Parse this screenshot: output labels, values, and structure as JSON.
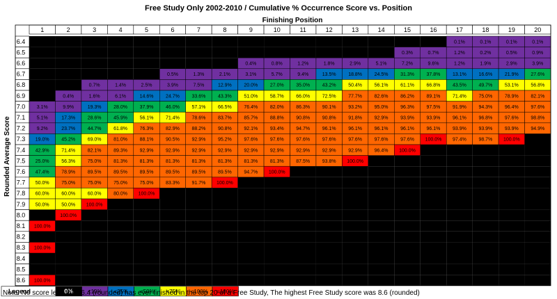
{
  "chart_data": {
    "type": "heatmap",
    "title": "Free Study Only 2002-2010 / Cumulative % Occurrence Score vs. Position",
    "xlabel": "Finishing Position",
    "ylabel": "Rounded Average Score",
    "columns": [
      1,
      2,
      3,
      4,
      5,
      6,
      7,
      8,
      9,
      10,
      11,
      12,
      13,
      14,
      15,
      16,
      17,
      18,
      19,
      20
    ],
    "rows": [
      {
        "score": "6.4",
        "values": [
          null,
          null,
          null,
          null,
          null,
          null,
          null,
          null,
          null,
          null,
          null,
          null,
          null,
          null,
          null,
          null,
          "0.1%",
          "0.1%",
          "0.1%",
          "0.1%"
        ]
      },
      {
        "score": "6.5",
        "values": [
          null,
          null,
          null,
          null,
          null,
          null,
          null,
          null,
          null,
          null,
          null,
          null,
          null,
          null,
          "0.3%",
          "0.7%",
          "1.2%",
          "0.2%",
          "0.5%",
          "0.9%"
        ]
      },
      {
        "score": "6.6",
        "values": [
          null,
          null,
          null,
          null,
          null,
          null,
          null,
          null,
          "0.4%",
          "0.8%",
          "1.2%",
          "1.8%",
          "2.9%",
          "5.1%",
          "7.2%",
          "9.6%",
          "1.2%",
          "1.9%",
          "2.9%",
          "3.9%"
        ]
      },
      {
        "score": "6.7",
        "values": [
          null,
          null,
          null,
          null,
          null,
          "0.5%",
          "1.3%",
          "2.1%",
          "3.1%",
          "5.7%",
          "9.4%",
          "13.5%",
          "18.8%",
          "24.5%",
          "31.3%",
          "37.8%",
          "13.1%",
          "16.6%",
          "21.9%",
          "27.6%"
        ]
      },
      {
        "score": "6.8",
        "values": [
          null,
          null,
          "0.7%",
          "1.4%",
          "2.5%",
          "3.9%",
          "7.5%",
          "12.9%",
          "20.0%",
          "27.0%",
          "35.0%",
          "43.2%",
          "50.4%",
          "56.1%",
          "61.1%",
          "66.8%",
          "43.5%",
          "49.7%",
          "53.1%",
          "56.8%"
        ]
      },
      {
        "score": "6.9",
        "values": [
          null,
          "0.4%",
          "1.6%",
          "6.1%",
          "14.6%",
          "24.7%",
          "33.6%",
          "43.3%",
          "51.0%",
          "58.7%",
          "66.0%",
          "72.5%",
          "77.7%",
          "82.6%",
          "86.2%",
          "89.1%",
          "71.4%",
          "75.0%",
          "78.9%",
          "82.1%"
        ]
      },
      {
        "score": "7.0",
        "values": [
          "3.1%",
          "9.9%",
          "19.3%",
          "28.0%",
          "37.9%",
          "46.0%",
          "57.1%",
          "66.5%",
          "76.4%",
          "82.0%",
          "86.3%",
          "90.1%",
          "93.2%",
          "95.0%",
          "96.3%",
          "97.5%",
          "91.9%",
          "94.3%",
          "96.4%",
          "97.6%"
        ]
      },
      {
        "score": "7.1",
        "values": [
          "5.1%",
          "17.3%",
          "28.6%",
          "45.9%",
          "56.1%",
          "71.4%",
          "78.6%",
          "83.7%",
          "85.7%",
          "88.8%",
          "90.8%",
          "90.8%",
          "91.8%",
          "92.9%",
          "93.9%",
          "93.9%",
          "96.1%",
          "96.8%",
          "97.6%",
          "98.8%"
        ]
      },
      {
        "score": "7.2",
        "values": [
          "9.2%",
          "23.7%",
          "44.7%",
          "61.8%",
          "76.3%",
          "82.9%",
          "88.2%",
          "90.8%",
          "92.1%",
          "93.4%",
          "94.7%",
          "96.1%",
          "96.1%",
          "96.1%",
          "96.1%",
          "96.1%",
          "93.9%",
          "93.9%",
          "93.9%",
          "94.9%"
        ]
      },
      {
        "score": "7.3",
        "values": [
          "19.0%",
          "45.2%",
          "69.0%",
          "81.0%",
          "88.1%",
          "90.5%",
          "92.9%",
          "95.2%",
          "97.6%",
          "97.6%",
          "97.6%",
          "97.6%",
          "97.6%",
          "97.6%",
          "97.6%",
          "100.0%",
          "97.4%",
          "98.7%",
          "100.0%",
          null
        ]
      },
      {
        "score": "7.4",
        "values": [
          "42.9%",
          "71.4%",
          "82.1%",
          "89.3%",
          "92.9%",
          "92.9%",
          "92.9%",
          "92.9%",
          "92.9%",
          "92.9%",
          "92.9%",
          "92.9%",
          "92.9%",
          "96.4%",
          "100.0%",
          null,
          null,
          null,
          null,
          null
        ]
      },
      {
        "score": "7.5",
        "values": [
          "25.0%",
          "56.3%",
          "75.0%",
          "81.3%",
          "81.3%",
          "81.3%",
          "81.3%",
          "81.3%",
          "81.3%",
          "81.3%",
          "87.5%",
          "93.8%",
          "100.0%",
          null,
          null,
          null,
          null,
          null,
          null,
          null
        ]
      },
      {
        "score": "7.6",
        "values": [
          "47.4%",
          "78.9%",
          "89.5%",
          "89.5%",
          "89.5%",
          "89.5%",
          "89.5%",
          "89.5%",
          "94.7%",
          "100.0%",
          null,
          null,
          null,
          null,
          null,
          null,
          null,
          null,
          null,
          null
        ]
      },
      {
        "score": "7.7",
        "values": [
          "50.0%",
          "75.0%",
          "75.0%",
          "75.0%",
          "75.0%",
          "83.3%",
          "91.7%",
          "100.0%",
          null,
          null,
          null,
          null,
          null,
          null,
          null,
          null,
          null,
          null,
          null,
          null
        ]
      },
      {
        "score": "7.8",
        "values": [
          "60.0%",
          "60.0%",
          "60.0%",
          "80.0%",
          "100.0%",
          null,
          null,
          null,
          null,
          null,
          null,
          null,
          null,
          null,
          null,
          null,
          null,
          null,
          null,
          null
        ]
      },
      {
        "score": "7.9",
        "values": [
          "50.0%",
          "50.0%",
          "100.0%",
          null,
          null,
          null,
          null,
          null,
          null,
          null,
          null,
          null,
          null,
          null,
          null,
          null,
          null,
          null,
          null,
          null
        ]
      },
      {
        "score": "8.0",
        "values": [
          null,
          "100.0%",
          null,
          null,
          null,
          null,
          null,
          null,
          null,
          null,
          null,
          null,
          null,
          null,
          null,
          null,
          null,
          null,
          null,
          null
        ]
      },
      {
        "score": "8.1",
        "values": [
          "100.0%",
          null,
          null,
          null,
          null,
          null,
          null,
          null,
          null,
          null,
          null,
          null,
          null,
          null,
          null,
          null,
          null,
          null,
          null,
          null
        ]
      },
      {
        "score": "8.2",
        "values": [
          null,
          null,
          null,
          null,
          null,
          null,
          null,
          null,
          null,
          null,
          null,
          null,
          null,
          null,
          null,
          null,
          null,
          null,
          null,
          null
        ]
      },
      {
        "score": "8.3",
        "values": [
          "100.0%",
          null,
          null,
          null,
          null,
          null,
          null,
          null,
          null,
          null,
          null,
          null,
          null,
          null,
          null,
          null,
          null,
          null,
          null,
          null
        ]
      },
      {
        "score": "8.4",
        "values": [
          null,
          null,
          null,
          null,
          null,
          null,
          null,
          null,
          null,
          null,
          null,
          null,
          null,
          null,
          null,
          null,
          null,
          null,
          null,
          null
        ]
      },
      {
        "score": "8.5",
        "values": [
          null,
          null,
          null,
          null,
          null,
          null,
          null,
          null,
          null,
          null,
          null,
          null,
          null,
          null,
          null,
          null,
          null,
          null,
          null,
          null
        ]
      },
      {
        "score": "8.6",
        "values": [
          "100.0%",
          null,
          null,
          null,
          null,
          null,
          null,
          null,
          null,
          null,
          null,
          null,
          null,
          null,
          null,
          null,
          null,
          null,
          null,
          null
        ]
      }
    ],
    "legend": {
      "title": "Legend",
      "items": [
        {
          "label": "0%",
          "color": "#000000"
        },
        {
          "label": "<10%",
          "color": "#7030a0"
        },
        {
          "label": "<25%",
          "color": "#0070c0"
        },
        {
          "label": "<50%",
          "color": "#00b050"
        },
        {
          "label": "<75%",
          "color": "#ffff00"
        },
        {
          "label": "<100%",
          "color": "#ff6600"
        },
        {
          "label": "=100%",
          "color": "#ff0000"
        }
      ]
    },
    "note": "Note: No score less than 6.4 (rounded) has ever finished in the top 20 of a Free Study, The highest Free Study score was 8.6 (rounded)"
  }
}
